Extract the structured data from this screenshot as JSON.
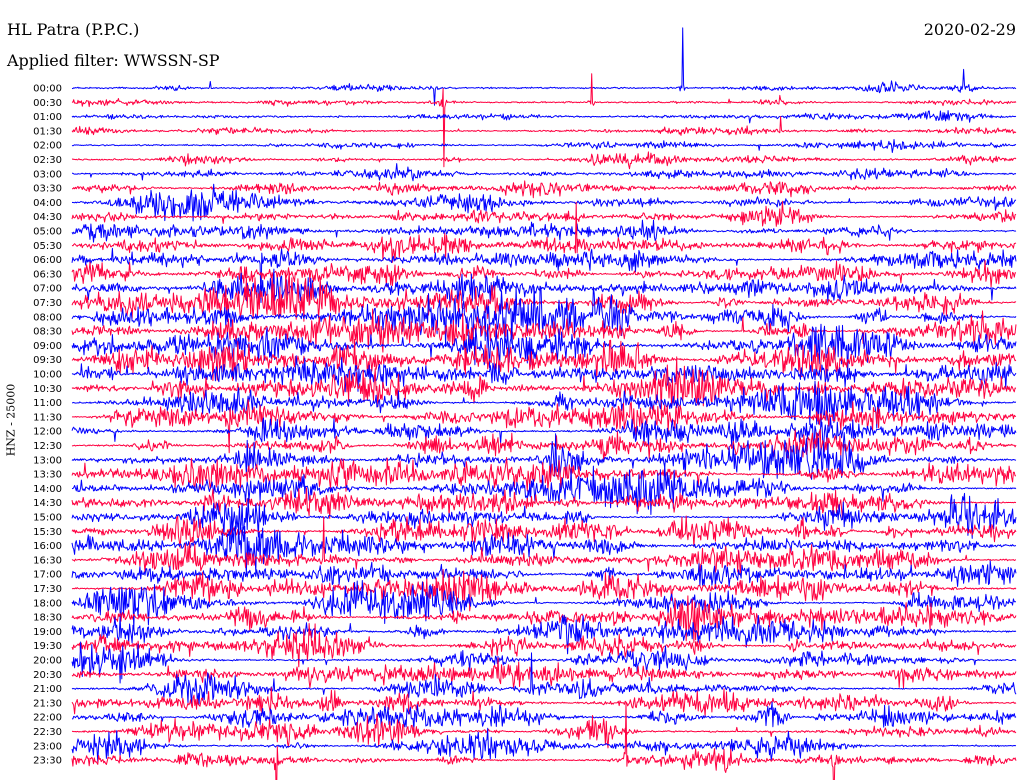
{
  "header": {
    "station": "HL Patra (P.P.C.)",
    "filter_label": "Applied filter: WWSSN-SP",
    "date": "2020-02-29"
  },
  "chart_data": {
    "type": "line",
    "title": "HL Patra (P.P.C.)",
    "date": "2020-02-29",
    "filter": "WWSSN-SP",
    "ylabel": "HNZ - 25000",
    "row_labels": [
      "00:00",
      "00:30",
      "01:00",
      "01:30",
      "02:00",
      "02:30",
      "03:00",
      "03:30",
      "04:00",
      "04:30",
      "05:00",
      "05:30",
      "06:00",
      "06:30",
      "07:00",
      "07:30",
      "08:00",
      "08:30",
      "09:00",
      "09:30",
      "10:00",
      "10:30",
      "11:00",
      "11:30",
      "12:00",
      "12:30",
      "13:00",
      "13:30",
      "14:00",
      "14:30",
      "15:00",
      "15:30",
      "16:00",
      "16:30",
      "17:00",
      "17:30",
      "18:00",
      "18:30",
      "19:00",
      "19:30",
      "20:00",
      "20:30",
      "21:00",
      "21:30",
      "22:00",
      "22:30",
      "23:00",
      "23:30"
    ],
    "row_colors": [
      "#0000ff",
      "#ff0040"
    ],
    "row_duration_minutes": 30,
    "activity_level": [
      0.2,
      0.22,
      0.22,
      0.25,
      0.25,
      0.28,
      0.32,
      0.4,
      0.45,
      0.48,
      0.52,
      0.58,
      0.66,
      0.72,
      0.78,
      0.82,
      0.86,
      0.88,
      0.9,
      0.9,
      0.9,
      0.88,
      0.88,
      0.86,
      0.85,
      0.84,
      0.83,
      0.82,
      0.8,
      0.8,
      0.8,
      0.8,
      0.8,
      0.8,
      0.78,
      0.78,
      0.78,
      0.76,
      0.76,
      0.74,
      0.72,
      0.7,
      0.68,
      0.66,
      0.62,
      0.6,
      0.58,
      0.55
    ],
    "notable_events": [
      {
        "row": "00:00",
        "minute": 19.4,
        "peak": 4.2
      },
      {
        "row": "00:00",
        "minute": 11.5,
        "peak": 1.2
      },
      {
        "row": "00:00",
        "minute": 28.3,
        "peak": 1.3
      },
      {
        "row": "00:30",
        "minute": 11.8,
        "peak": 4.5
      },
      {
        "row": "00:30",
        "minute": 16.5,
        "peak": 2.0
      },
      {
        "row": "01:30",
        "minute": 22.5,
        "peak": 1.0
      },
      {
        "row": "05:30",
        "minute": 16.0,
        "peak": 3.0
      },
      {
        "row": "06:00",
        "minute": 6.0,
        "peak": 3.0
      },
      {
        "row": "08:30",
        "minute": 12.5,
        "peak": 3.0
      },
      {
        "row": "11:30",
        "minute": 5.0,
        "peak": 2.5
      },
      {
        "row": "16:30",
        "minute": 8.0,
        "peak": 3.0
      },
      {
        "row": "21:00",
        "minute": 14.6,
        "peak": 2.5
      },
      {
        "row": "23:30",
        "minute": 6.5,
        "peak": 3.5
      },
      {
        "row": "23:30",
        "minute": 17.6,
        "peak": 4.0
      },
      {
        "row": "23:30",
        "minute": 24.2,
        "peak": 3.0
      }
    ]
  }
}
